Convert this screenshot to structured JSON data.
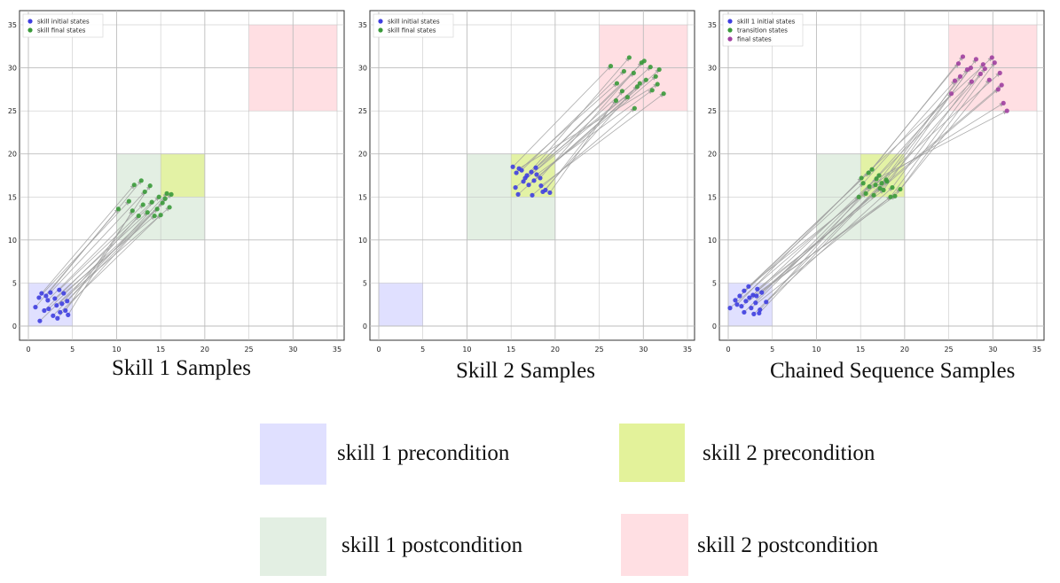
{
  "colors": {
    "skill1_pre": "#e0e0ff",
    "skill1_post": "#e3efe3",
    "skill2_pre": "#e3f29a",
    "skill2_post": "#ffdfe3",
    "initial": "#3f3fe0",
    "final_green": "#3a9a3a",
    "final_purple": "#a040a0",
    "arrow": "#9e9e9e",
    "grid": "#bdbdbd"
  },
  "chart_data": [
    {
      "type": "scatter",
      "caption": "Skill 1 Samples",
      "xlim": [
        0,
        35
      ],
      "ylim": [
        0,
        35
      ],
      "xticks": [
        "0",
        "5",
        "10",
        "15",
        "20",
        "25",
        "30",
        "35"
      ],
      "yticks": [
        "0",
        "5",
        "10",
        "15",
        "20",
        "25",
        "30",
        "35"
      ],
      "grid": true,
      "legend_position": "top-left",
      "regions": [
        {
          "key": "skill1_pre",
          "x": [
            0,
            5
          ],
          "y": [
            0,
            5
          ]
        },
        {
          "key": "skill1_post",
          "x": [
            10,
            20
          ],
          "y": [
            10,
            20
          ]
        },
        {
          "key": "skill2_pre",
          "x": [
            15,
            20
          ],
          "y": [
            15,
            20
          ]
        },
        {
          "key": "skill2_post",
          "x": [
            25,
            35
          ],
          "y": [
            25,
            35
          ]
        }
      ],
      "series": [
        {
          "name": "skill initial states",
          "color_key": "initial",
          "points": [
            [
              0.8,
              2.2
            ],
            [
              1.2,
              3.3
            ],
            [
              1.5,
              3.8
            ],
            [
              2.0,
              3.5
            ],
            [
              2.5,
              3.9
            ],
            [
              3.0,
              3.2
            ],
            [
              3.5,
              4.2
            ],
            [
              4.0,
              3.8
            ],
            [
              1.8,
              1.8
            ],
            [
              2.3,
              2.0
            ],
            [
              2.8,
              1.2
            ],
            [
              3.2,
              2.4
            ],
            [
              3.8,
              2.6
            ],
            [
              4.2,
              1.8
            ],
            [
              4.5,
              1.3
            ],
            [
              1.3,
              0.6
            ],
            [
              3.3,
              0.9
            ],
            [
              4.4,
              2.9
            ],
            [
              2.2,
              3.0
            ],
            [
              3.6,
              1.6
            ]
          ]
        },
        {
          "name": "skill final states",
          "color_key": "final_green",
          "points": [
            [
              10.2,
              13.6
            ],
            [
              11.4,
              14.5
            ],
            [
              12.0,
              16.4
            ],
            [
              12.8,
              16.9
            ],
            [
              13.2,
              15.6
            ],
            [
              13.5,
              13.2
            ],
            [
              14.0,
              14.4
            ],
            [
              14.3,
              12.8
            ],
            [
              14.8,
              15.0
            ],
            [
              15.2,
              14.3
            ],
            [
              15.7,
              15.4
            ],
            [
              16.0,
              13.8
            ],
            [
              12.5,
              12.8
            ],
            [
              13.8,
              16.3
            ],
            [
              11.8,
              13.4
            ],
            [
              14.6,
              13.6
            ],
            [
              15.5,
              14.8
            ],
            [
              16.2,
              15.3
            ],
            [
              13.0,
              14.1
            ],
            [
              15.0,
              12.9
            ]
          ]
        }
      ]
    },
    {
      "type": "scatter",
      "caption": "Skill 2 Samples",
      "xlim": [
        0,
        35
      ],
      "ylim": [
        0,
        35
      ],
      "xticks": [
        "0",
        "5",
        "10",
        "15",
        "20",
        "25",
        "30",
        "35"
      ],
      "yticks": [
        "0",
        "5",
        "10",
        "15",
        "20",
        "25",
        "30",
        "35"
      ],
      "grid": true,
      "legend_position": "top-left",
      "regions": [
        {
          "key": "skill1_pre",
          "x": [
            0,
            5
          ],
          "y": [
            0,
            5
          ]
        },
        {
          "key": "skill1_post",
          "x": [
            10,
            20
          ],
          "y": [
            10,
            20
          ]
        },
        {
          "key": "skill2_pre",
          "x": [
            15,
            20
          ],
          "y": [
            15,
            20
          ]
        },
        {
          "key": "skill2_post",
          "x": [
            25,
            35
          ],
          "y": [
            25,
            35
          ]
        }
      ],
      "series": [
        {
          "name": "skill initial states",
          "color_key": "initial",
          "points": [
            [
              15.2,
              18.5
            ],
            [
              15.6,
              17.8
            ],
            [
              16.2,
              18.1
            ],
            [
              16.8,
              17.5
            ],
            [
              17.3,
              17.9
            ],
            [
              17.8,
              18.4
            ],
            [
              18.3,
              17.2
            ],
            [
              15.5,
              16.1
            ],
            [
              16.4,
              16.8
            ],
            [
              17.0,
              16.4
            ],
            [
              17.6,
              16.9
            ],
            [
              18.4,
              16.3
            ],
            [
              18.9,
              15.8
            ],
            [
              19.4,
              15.5
            ],
            [
              15.8,
              15.3
            ],
            [
              17.4,
              15.2
            ],
            [
              18.6,
              15.6
            ],
            [
              16.6,
              17.2
            ],
            [
              17.9,
              17.6
            ],
            [
              15.9,
              18.3
            ]
          ]
        },
        {
          "name": "skill final states",
          "color_key": "final_green",
          "points": [
            [
              26.3,
              30.2
            ],
            [
              27.0,
              28.2
            ],
            [
              27.8,
              29.6
            ],
            [
              28.4,
              31.2
            ],
            [
              28.9,
              29.4
            ],
            [
              29.3,
              27.8
            ],
            [
              29.8,
              30.6
            ],
            [
              30.3,
              28.6
            ],
            [
              30.8,
              30.1
            ],
            [
              31.4,
              29.0
            ],
            [
              31.8,
              29.8
            ],
            [
              32.3,
              27.0
            ],
            [
              26.9,
              26.2
            ],
            [
              27.6,
              27.3
            ],
            [
              28.2,
              26.6
            ],
            [
              29.0,
              25.3
            ],
            [
              29.6,
              28.2
            ],
            [
              30.1,
              30.8
            ],
            [
              31.0,
              27.4
            ],
            [
              31.6,
              28.1
            ]
          ]
        }
      ]
    },
    {
      "type": "scatter",
      "caption": "Chained Sequence Samples",
      "xlim": [
        0,
        35
      ],
      "ylim": [
        0,
        35
      ],
      "xticks": [
        "0",
        "5",
        "10",
        "15",
        "20",
        "25",
        "30",
        "35"
      ],
      "yticks": [
        "0",
        "5",
        "10",
        "15",
        "20",
        "25",
        "30",
        "35"
      ],
      "grid": true,
      "legend_position": "top-left",
      "regions": [
        {
          "key": "skill1_pre",
          "x": [
            0,
            5
          ],
          "y": [
            0,
            5
          ]
        },
        {
          "key": "skill1_post",
          "x": [
            10,
            20
          ],
          "y": [
            10,
            20
          ]
        },
        {
          "key": "skill2_pre",
          "x": [
            15,
            20
          ],
          "y": [
            15,
            20
          ]
        },
        {
          "key": "skill2_post",
          "x": [
            25,
            35
          ],
          "y": [
            25,
            35
          ]
        }
      ],
      "series": [
        {
          "name": "skill 1 initial states",
          "color_key": "initial",
          "points": [
            [
              0.2,
              2.1
            ],
            [
              0.8,
              3.0
            ],
            [
              1.3,
              3.5
            ],
            [
              1.8,
              4.1
            ],
            [
              2.3,
              4.6
            ],
            [
              2.8,
              3.6
            ],
            [
              3.3,
              4.3
            ],
            [
              3.8,
              3.9
            ],
            [
              1.5,
              2.3
            ],
            [
              2.0,
              2.9
            ],
            [
              2.6,
              2.1
            ],
            [
              3.1,
              2.7
            ],
            [
              3.6,
              1.9
            ],
            [
              1.8,
              1.6
            ],
            [
              2.9,
              1.4
            ],
            [
              3.5,
              1.5
            ],
            [
              4.3,
              2.8
            ],
            [
              1.0,
              2.5
            ],
            [
              2.4,
              3.3
            ],
            [
              3.2,
              3.5
            ]
          ]
        },
        {
          "name": "transition states",
          "color_key": "final_green",
          "points": [
            [
              14.8,
              15.0
            ],
            [
              15.3,
              16.6
            ],
            [
              15.9,
              17.8
            ],
            [
              16.3,
              18.2
            ],
            [
              16.7,
              16.4
            ],
            [
              17.1,
              17.5
            ],
            [
              17.6,
              15.8
            ],
            [
              18.0,
              16.8
            ],
            [
              18.4,
              15.0
            ],
            [
              18.9,
              15.1
            ],
            [
              19.5,
              15.9
            ],
            [
              15.6,
              15.4
            ],
            [
              16.0,
              16.2
            ],
            [
              16.8,
              17.1
            ],
            [
              17.4,
              16.6
            ],
            [
              17.9,
              17.0
            ],
            [
              18.6,
              16.1
            ],
            [
              15.1,
              17.2
            ],
            [
              16.5,
              15.2
            ],
            [
              17.2,
              16.0
            ]
          ]
        },
        {
          "name": "final states",
          "color_key": "final_purple",
          "points": [
            [
              25.3,
              27.0
            ],
            [
              25.7,
              28.5
            ],
            [
              26.1,
              30.5
            ],
            [
              26.6,
              31.3
            ],
            [
              27.1,
              29.8
            ],
            [
              27.6,
              28.4
            ],
            [
              28.1,
              31.0
            ],
            [
              28.6,
              29.3
            ],
            [
              29.1,
              29.9
            ],
            [
              29.6,
              28.6
            ],
            [
              30.2,
              30.6
            ],
            [
              30.8,
              29.4
            ],
            [
              31.2,
              25.9
            ],
            [
              31.6,
              25.0
            ],
            [
              26.3,
              29.0
            ],
            [
              27.5,
              30.0
            ],
            [
              28.9,
              30.4
            ],
            [
              29.9,
              31.2
            ],
            [
              30.6,
              27.5
            ],
            [
              31.0,
              28.0
            ]
          ]
        }
      ]
    }
  ],
  "legend": [
    {
      "key": "skill1_pre",
      "label": "skill 1 precondition"
    },
    {
      "key": "skill2_pre",
      "label": "skill 2 precondition"
    },
    {
      "key": "skill1_post",
      "label": "skill 1 postcondition"
    },
    {
      "key": "skill2_post",
      "label": "skill 2 postcondition"
    }
  ]
}
